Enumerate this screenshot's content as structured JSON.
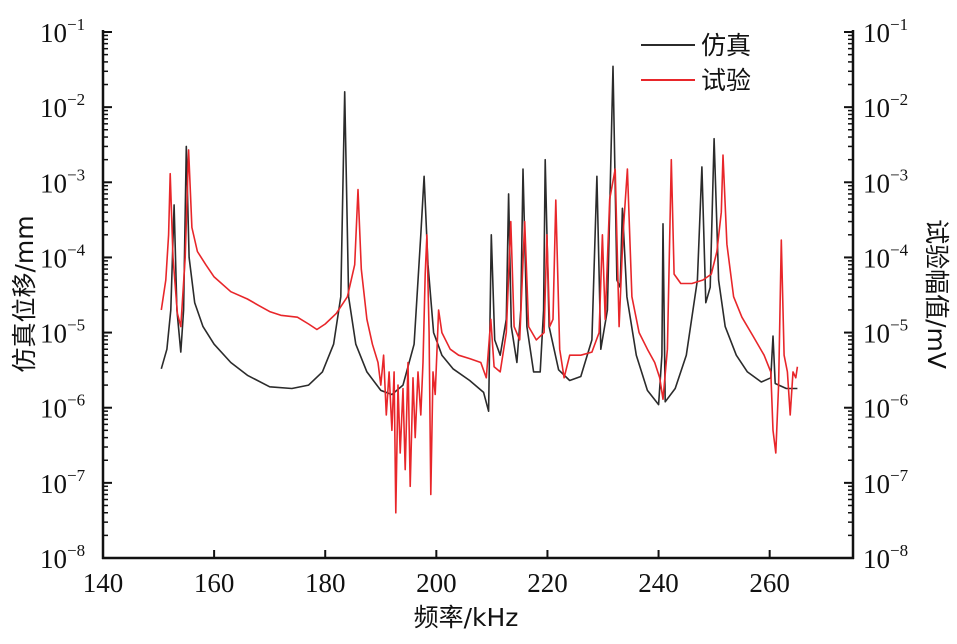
{
  "chart_data": {
    "type": "line",
    "title": "",
    "xlabel": "频率/kHz",
    "ylabel": "仿真位移/mm",
    "ylabel_right": "试验幅值/mV",
    "xlim": [
      140,
      275
    ],
    "ylim": [
      1e-08,
      0.1
    ],
    "yscale": "log",
    "x_ticks": [
      140,
      160,
      180,
      200,
      220,
      240,
      260
    ],
    "y_tick_base": "10",
    "y_tick_exponents": [
      "-1",
      "-2",
      "-3",
      "-4",
      "-5",
      "-6",
      "-7",
      "-8"
    ],
    "grid": false,
    "legend_position": "top-right",
    "series": [
      {
        "name": "仿真",
        "color": "#2b2b2b",
        "points": [
          [
            150.5,
            3.3e-06
          ],
          [
            151.5,
            6e-06
          ],
          [
            152.2,
            2e-05
          ],
          [
            152.8,
            0.0005
          ],
          [
            153.3,
            2e-05
          ],
          [
            154,
            5.5e-06
          ],
          [
            154.5,
            2e-05
          ],
          [
            155,
            0.003
          ],
          [
            155.5,
            0.0001
          ],
          [
            156.5,
            2.5e-05
          ],
          [
            158,
            1.2e-05
          ],
          [
            160,
            7e-06
          ],
          [
            163,
            4e-06
          ],
          [
            166,
            2.7e-06
          ],
          [
            170,
            1.9e-06
          ],
          [
            174,
            1.8e-06
          ],
          [
            177,
            2e-06
          ],
          [
            179.5,
            3e-06
          ],
          [
            181.5,
            7e-06
          ],
          [
            182.8,
            3e-05
          ],
          [
            183.5,
            0.016
          ],
          [
            184.2,
            3e-05
          ],
          [
            185.5,
            7e-06
          ],
          [
            187.5,
            3e-06
          ],
          [
            190,
            1.7e-06
          ],
          [
            192,
            1.5e-06
          ],
          [
            194,
            2e-06
          ],
          [
            196,
            7e-06
          ],
          [
            197.2,
            0.0002
          ],
          [
            197.8,
            0.0012
          ],
          [
            198.5,
            8e-05
          ],
          [
            199.5,
            1e-05
          ],
          [
            201,
            5e-06
          ],
          [
            203,
            3.3e-06
          ],
          [
            206,
            2.3e-06
          ],
          [
            208.5,
            1.6e-06
          ],
          [
            209.4,
            9e-07
          ],
          [
            209.9,
            0.0002
          ],
          [
            210.5,
            8e-06
          ],
          [
            211.5,
            5e-06
          ],
          [
            212.6,
            1.5e-05
          ],
          [
            213,
            0.0007
          ],
          [
            213.5,
            1.2e-05
          ],
          [
            214.5,
            4e-06
          ],
          [
            215.2,
            2e-05
          ],
          [
            215.6,
            0.0015
          ],
          [
            216.3,
            1.2e-05
          ],
          [
            217.5,
            3e-06
          ],
          [
            218.7,
            3e-06
          ],
          [
            219.3,
            2e-05
          ],
          [
            219.6,
            0.002
          ],
          [
            220.3,
            1.2e-05
          ],
          [
            222,
            3.2e-06
          ],
          [
            224,
            2.3e-06
          ],
          [
            226,
            2.6e-06
          ],
          [
            228,
            8e-06
          ],
          [
            228.9,
            0.0012
          ],
          [
            229.6,
            6e-06
          ],
          [
            230.8,
            2e-05
          ],
          [
            231.8,
            0.035
          ],
          [
            232.5,
            5e-05
          ],
          [
            233.1,
            4e-05
          ],
          [
            233.5,
            0.00045
          ],
          [
            234.3,
            3e-05
          ],
          [
            236,
            5e-06
          ],
          [
            238,
            1.7e-06
          ],
          [
            240,
            1.1e-06
          ],
          [
            240.6,
            5e-06
          ],
          [
            240.8,
            0.00028
          ],
          [
            241.2,
            1.2e-06
          ],
          [
            243,
            1.8e-06
          ],
          [
            245,
            5e-06
          ],
          [
            247,
            5e-05
          ],
          [
            247.8,
            0.0016
          ],
          [
            248.5,
            2.5e-05
          ],
          [
            249.3,
            4e-05
          ],
          [
            250,
            0.0038
          ],
          [
            250.8,
            5e-05
          ],
          [
            252,
            1.2e-05
          ],
          [
            254,
            5e-06
          ],
          [
            256,
            3e-06
          ],
          [
            258.5,
            2.2e-06
          ],
          [
            260.2,
            2.5e-06
          ],
          [
            260.6,
            9e-06
          ],
          [
            261,
            2.1e-06
          ],
          [
            263,
            1.8e-06
          ],
          [
            265,
            1.8e-06
          ]
        ]
      },
      {
        "name": "试验",
        "color": "#e8262a",
        "points": [
          [
            150.5,
            2e-05
          ],
          [
            151.3,
            5e-05
          ],
          [
            151.8,
            0.0002
          ],
          [
            152.1,
            0.0013
          ],
          [
            152.6,
            0.0001
          ],
          [
            153.4,
            1.8e-05
          ],
          [
            154,
            1.2e-05
          ],
          [
            154.8,
            0.0001
          ],
          [
            155.4,
            0.0027
          ],
          [
            156,
            0.00025
          ],
          [
            157,
            0.00012
          ],
          [
            158.5,
            8e-05
          ],
          [
            160,
            5.5e-05
          ],
          [
            163,
            3.5e-05
          ],
          [
            166,
            2.8e-05
          ],
          [
            168,
            2.3e-05
          ],
          [
            170,
            1.9e-05
          ],
          [
            172,
            1.7e-05
          ],
          [
            175,
            1.6e-05
          ],
          [
            177,
            1.3e-05
          ],
          [
            178.5,
            1.1e-05
          ],
          [
            180,
            1.3e-05
          ],
          [
            182,
            1.8e-05
          ],
          [
            184,
            3e-05
          ],
          [
            185.3,
            8e-05
          ],
          [
            185.9,
            0.0008
          ],
          [
            186.5,
            7e-05
          ],
          [
            187.5,
            1.5e-05
          ],
          [
            188.5,
            7e-06
          ],
          [
            189.5,
            4e-06
          ],
          [
            190,
            2e-06
          ],
          [
            190.5,
            5e-06
          ],
          [
            191,
            8e-07
          ],
          [
            191.5,
            3e-06
          ],
          [
            192,
            5e-07
          ],
          [
            192.4,
            3e-06
          ],
          [
            192.7,
            4e-08
          ],
          [
            193.1,
            2e-06
          ],
          [
            193.5,
            2.5e-07
          ],
          [
            194,
            1.8e-06
          ],
          [
            194.4,
            1.5e-07
          ],
          [
            194.9,
            4e-06
          ],
          [
            195.3,
            9e-08
          ],
          [
            195.8,
            2.5e-06
          ],
          [
            196.2,
            4e-07
          ],
          [
            196.7,
            3e-06
          ],
          [
            197.2,
            8e-07
          ],
          [
            197.6,
            4e-06
          ],
          [
            198,
            6e-05
          ],
          [
            198.3,
            0.0002
          ],
          [
            198.7,
            1e-05
          ],
          [
            199,
            7e-08
          ],
          [
            199.4,
            3e-06
          ],
          [
            199.8,
            1.5e-06
          ],
          [
            200.4,
            2e-05
          ],
          [
            201,
            1e-05
          ],
          [
            202.5,
            6e-06
          ],
          [
            204,
            5e-06
          ],
          [
            206,
            4.5e-06
          ],
          [
            208,
            4e-06
          ],
          [
            209,
            2.5e-06
          ],
          [
            209.8,
            1.5e-05
          ],
          [
            210.4,
            3.5e-06
          ],
          [
            211.5,
            3e-06
          ],
          [
            212.6,
            1e-05
          ],
          [
            213.4,
            0.0003
          ],
          [
            214,
            1.2e-05
          ],
          [
            215,
            8e-06
          ],
          [
            215.9,
            0.0003
          ],
          [
            216.6,
            1.2e-05
          ],
          [
            218,
            8e-06
          ],
          [
            219.4,
            1e-05
          ],
          [
            219.9,
            0.0002
          ],
          [
            220.4,
            1.2e-05
          ],
          [
            221,
            1.5e-05
          ],
          [
            221.5,
            0.00058
          ],
          [
            222.2,
            6e-06
          ],
          [
            223,
            2.5e-06
          ],
          [
            224,
            5e-06
          ],
          [
            226,
            5e-06
          ],
          [
            228,
            5.5e-06
          ],
          [
            229.3,
            1e-05
          ],
          [
            229.9,
            0.0002
          ],
          [
            230.4,
            1.5e-05
          ],
          [
            231.2,
            0.0006
          ],
          [
            232.2,
            0.0015
          ],
          [
            232.9,
            1.2e-05
          ],
          [
            233.6,
            0.0002
          ],
          [
            234.4,
            0.0015
          ],
          [
            235.2,
            3e-05
          ],
          [
            236.5,
            1e-05
          ],
          [
            238,
            6e-06
          ],
          [
            239.3,
            4e-06
          ],
          [
            240.2,
            2.5e-06
          ],
          [
            240.8,
            1.3e-06
          ],
          [
            241.6,
            6e-06
          ],
          [
            242.3,
            0.002
          ],
          [
            242.8,
            6e-05
          ],
          [
            244,
            4.5e-05
          ],
          [
            246,
            4.5e-05
          ],
          [
            248,
            5e-05
          ],
          [
            249.5,
            6e-05
          ],
          [
            250.5,
            0.00012
          ],
          [
            251.3,
            0.0004
          ],
          [
            251.6,
            0.0023
          ],
          [
            252.3,
            0.00015
          ],
          [
            253.5,
            3e-05
          ],
          [
            255,
            1.6e-05
          ],
          [
            257,
            9e-06
          ],
          [
            259,
            5e-06
          ],
          [
            260.2,
            3e-06
          ],
          [
            260.6,
            5e-07
          ],
          [
            261.1,
            2.5e-07
          ],
          [
            261.6,
            2e-06
          ],
          [
            262.1,
            0.00017
          ],
          [
            262.6,
            5e-06
          ],
          [
            263.2,
            3e-06
          ],
          [
            263.7,
            8e-07
          ],
          [
            264.2,
            3e-06
          ],
          [
            264.7,
            2.5e-06
          ],
          [
            265,
            3.5e-06
          ]
        ]
      }
    ]
  }
}
